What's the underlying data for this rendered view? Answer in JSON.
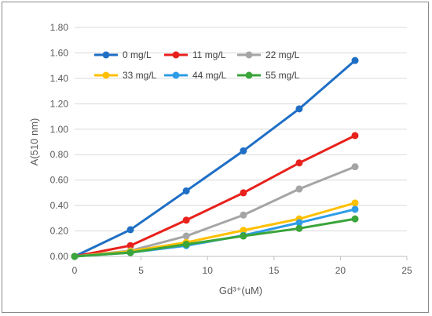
{
  "chart_data": {
    "type": "line",
    "title": "",
    "xlabel": "Gd³⁺(uM)",
    "ylabel": "A(510 nm)",
    "xlim": [
      0,
      25
    ],
    "ylim": [
      0,
      1.8
    ],
    "x_ticks": [
      "0",
      "5",
      "10",
      "15",
      "20",
      "25"
    ],
    "y_ticks": [
      "0.00",
      "0.20",
      "0.40",
      "0.60",
      "0.80",
      "1.00",
      "1.20",
      "1.40",
      "1.60",
      "1.80"
    ],
    "grid": "horizontal",
    "legend_position": "top-left",
    "x": [
      0,
      4.2,
      8.4,
      12.7,
      16.9,
      21.1
    ],
    "series": [
      {
        "name": "0 mg/L",
        "color": "#1f6fc5",
        "values": [
          0.0,
          0.21,
          0.515,
          0.83,
          1.16,
          1.54
        ]
      },
      {
        "name": "11 mg/L",
        "color": "#e8211c",
        "values": [
          0.0,
          0.085,
          0.285,
          0.5,
          0.735,
          0.95
        ]
      },
      {
        "name": "22 mg/L",
        "color": "#a5a5a5",
        "values": [
          0.0,
          0.045,
          0.16,
          0.325,
          0.53,
          0.705
        ]
      },
      {
        "name": "33 mg/L",
        "color": "#ffc000",
        "values": [
          0.0,
          0.04,
          0.11,
          0.205,
          0.295,
          0.42
        ]
      },
      {
        "name": "44 mg/L",
        "color": "#2e9ce6",
        "values": [
          0.0,
          0.03,
          0.085,
          0.165,
          0.265,
          0.37
        ]
      },
      {
        "name": "55 mg/L",
        "color": "#3aa53a",
        "values": [
          0.0,
          0.03,
          0.095,
          0.16,
          0.22,
          0.295
        ]
      }
    ]
  }
}
